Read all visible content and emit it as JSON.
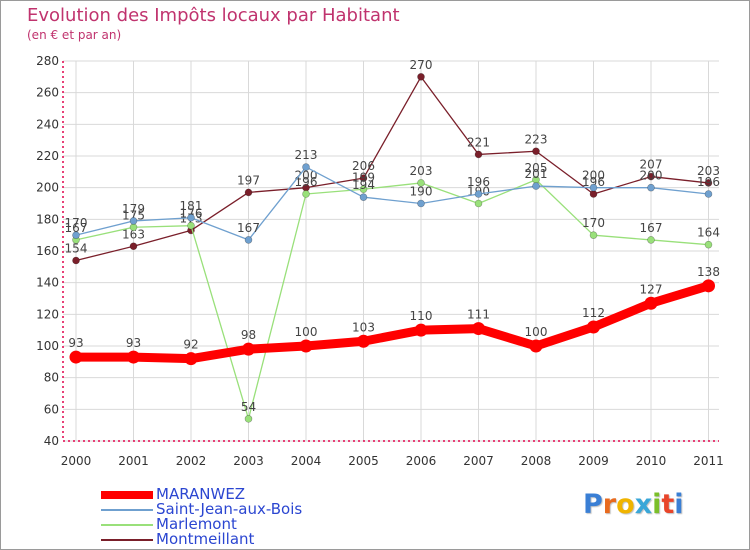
{
  "title": "Evolution des Impôts locaux par Habitant",
  "subtitle": "(en € et par an)",
  "logo_text": "Proxiti",
  "colors": {
    "title": "#c0336e",
    "axis": "#e0004a",
    "grid": "#d9d9d9",
    "legend_text": "#2b46d1"
  },
  "chart_data": {
    "type": "line",
    "title": "Evolution des Impôts locaux par Habitant",
    "subtitle": "(en € et par an)",
    "xlabel": "",
    "ylabel": "",
    "ylim": [
      40,
      280
    ],
    "y_ticks": [
      40,
      60,
      80,
      100,
      120,
      140,
      160,
      180,
      200,
      220,
      240,
      260,
      280
    ],
    "categories": [
      "2000",
      "2001",
      "2002",
      "2003",
      "2004",
      "2005",
      "2006",
      "2007",
      "2008",
      "2009",
      "2010",
      "2011"
    ],
    "legend_position": "bottom-left",
    "series": [
      {
        "name": "Montmeillant",
        "color": "#7a1f2a",
        "values": [
          154,
          163,
          173,
          197,
          200,
          206,
          270,
          221,
          223,
          196,
          207,
          203
        ],
        "labels": [
          "154",
          "163",
          "173",
          "197",
          "200",
          "206",
          "270",
          "221",
          "223",
          "196",
          "207",
          "203"
        ]
      },
      {
        "name": "Marlemont",
        "color": "#99e07a",
        "values": [
          167,
          175,
          176,
          54,
          196,
          199,
          203,
          190,
          205,
          170,
          167,
          164
        ],
        "labels": [
          "167",
          "175",
          "176",
          "54",
          "196",
          "199",
          "203",
          "190",
          "205",
          "170",
          "167",
          "164"
        ]
      },
      {
        "name": "Saint-Jean-aux-Bois",
        "color": "#6fa0cf",
        "values": [
          170,
          179,
          181,
          167,
          213,
          194,
          190,
          196,
          201,
          200,
          200,
          196
        ],
        "labels": [
          "170",
          "179",
          "181",
          "167",
          "213",
          "194",
          "190",
          "196",
          "201",
          "200",
          "200",
          "196"
        ]
      },
      {
        "name": "MARANWEZ",
        "color": "#ff0000",
        "values": [
          93,
          93,
          92,
          98,
          100,
          103,
          110,
          111,
          100,
          112,
          127,
          138
        ],
        "labels": [
          "93",
          "93",
          "92",
          "98",
          "100",
          "103",
          "110",
          "111",
          "100",
          "112",
          "127",
          "138"
        ]
      }
    ]
  },
  "legend": [
    {
      "name": "MARANWEZ",
      "color": "#ff0000"
    },
    {
      "name": "Saint-Jean-aux-Bois",
      "color": "#6fa0cf"
    },
    {
      "name": "Marlemont",
      "color": "#99e07a"
    },
    {
      "name": "Montmeillant",
      "color": "#7a1f2a"
    }
  ]
}
